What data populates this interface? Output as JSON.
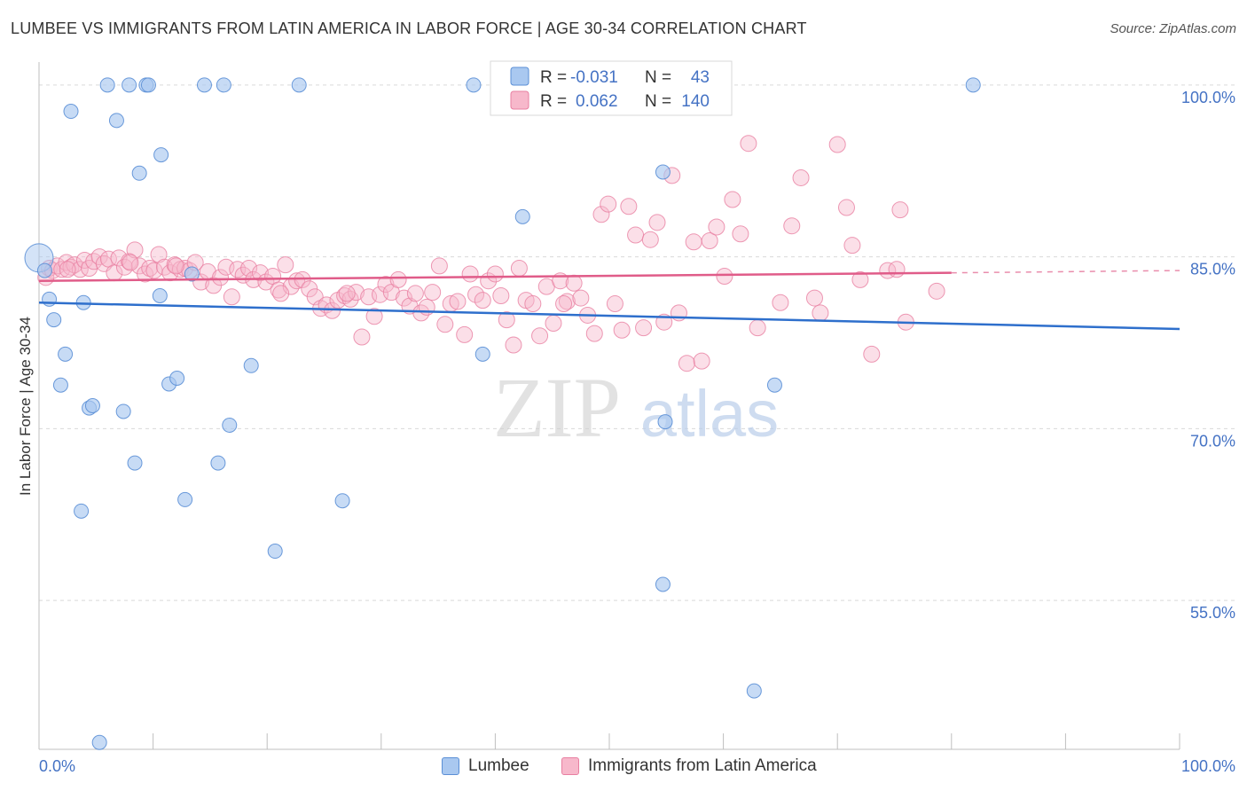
{
  "title": "LUMBEE VS IMMIGRANTS FROM LATIN AMERICA IN LABOR FORCE | AGE 30-34 CORRELATION CHART",
  "source": "Source: ZipAtlas.com",
  "watermark": {
    "zip": "ZIP",
    "atlas": "atlas"
  },
  "colors": {
    "blue_fill": "#a9c8f0",
    "blue_stroke": "#5b8fd6",
    "blue_line": "#2e6fcc",
    "pink_fill": "#f7b8cb",
    "pink_stroke": "#e87fa1",
    "pink_line": "#e05c89",
    "axis_text": "#4472c4",
    "grid": "#d9d9d9"
  },
  "legend_box": {
    "rows": [
      {
        "r_label": "R =",
        "r_value": "-0.031",
        "n_label": "N =",
        "n_value": "43"
      },
      {
        "r_label": "R =",
        "r_value": "0.062",
        "n_label": "N =",
        "n_value": "140"
      }
    ]
  },
  "bottom_legend": [
    "Lumbee",
    "Immigrants from Latin America"
  ],
  "chart_data": {
    "type": "scatter",
    "title": "LUMBEE VS IMMIGRANTS FROM LATIN AMERICA IN LABOR FORCE | AGE 30-34 CORRELATION CHART",
    "xlabel": "",
    "ylabel": "In Labor Force | Age 30-34",
    "xlim": [
      0,
      100
    ],
    "ylim": [
      42,
      102
    ],
    "x_tick_labels": [
      {
        "value": 0,
        "label": "0.0%"
      },
      {
        "value": 100,
        "label": "100.0%"
      }
    ],
    "y_tick_labels": [
      {
        "value": 100,
        "label": "100.0%"
      },
      {
        "value": 85,
        "label": "85.0%"
      },
      {
        "value": 70,
        "label": "70.0%"
      },
      {
        "value": 55,
        "label": "55.0%"
      }
    ],
    "series": [
      {
        "name": "Lumbee",
        "R": -0.031,
        "N": 43,
        "trend": {
          "x0": 0,
          "y0": 81.0,
          "x1": 100,
          "y1": 78.7
        },
        "points": [
          [
            0,
            84.9
          ],
          [
            0.9,
            81.3
          ],
          [
            1.3,
            79.5
          ],
          [
            1.9,
            73.8
          ],
          [
            2.3,
            76.5
          ],
          [
            2.8,
            97.7
          ],
          [
            3.7,
            62.8
          ],
          [
            3.9,
            81.0
          ],
          [
            4.4,
            71.8
          ],
          [
            4.7,
            72.0
          ],
          [
            5.3,
            42.6
          ],
          [
            6.0,
            100.0
          ],
          [
            6.8,
            96.9
          ],
          [
            7.4,
            71.5
          ],
          [
            7.9,
            100.0
          ],
          [
            8.4,
            67.0
          ],
          [
            8.8,
            92.3
          ],
          [
            9.4,
            100.0
          ],
          [
            9.6,
            100.0
          ],
          [
            10.6,
            81.6
          ],
          [
            10.7,
            93.9
          ],
          [
            11.4,
            73.9
          ],
          [
            12.1,
            74.4
          ],
          [
            12.8,
            63.8
          ],
          [
            13.4,
            83.5
          ],
          [
            14.5,
            100.0
          ],
          [
            15.7,
            67.0
          ],
          [
            16.2,
            100.0
          ],
          [
            16.7,
            70.3
          ],
          [
            18.6,
            75.5
          ],
          [
            20.7,
            59.3
          ],
          [
            22.8,
            100.0
          ],
          [
            26.6,
            63.7
          ],
          [
            38.1,
            100.0
          ],
          [
            38.9,
            76.5
          ],
          [
            42.4,
            88.5
          ],
          [
            54.7,
            92.4
          ],
          [
            54.9,
            70.6
          ],
          [
            54.7,
            56.4
          ],
          [
            62.7,
            47.1
          ],
          [
            64.5,
            73.8
          ],
          [
            81.9,
            100.0
          ],
          [
            0.5,
            83.8
          ]
        ]
      },
      {
        "name": "Immigrants from Latin America",
        "R": 0.062,
        "N": 140,
        "trend": {
          "x0": 0,
          "y0": 82.9,
          "x1": 80,
          "y1": 83.6,
          "dash_x1": 100,
          "dash_y1": 83.8
        },
        "points": [
          [
            0.6,
            83.2
          ],
          [
            0.9,
            84.0
          ],
          [
            1.2,
            83.8
          ],
          [
            1.6,
            84.2
          ],
          [
            2.0,
            83.9
          ],
          [
            2.4,
            84.5
          ],
          [
            2.8,
            84.1
          ],
          [
            3.1,
            84.3
          ],
          [
            3.6,
            83.9
          ],
          [
            4.0,
            84.7
          ],
          [
            4.4,
            84.0
          ],
          [
            4.8,
            84.6
          ],
          [
            5.3,
            85.0
          ],
          [
            5.7,
            84.4
          ],
          [
            6.1,
            84.8
          ],
          [
            6.6,
            83.6
          ],
          [
            7.0,
            84.9
          ],
          [
            7.5,
            84.1
          ],
          [
            7.9,
            84.6
          ],
          [
            8.4,
            85.6
          ],
          [
            8.8,
            84.2
          ],
          [
            9.3,
            83.5
          ],
          [
            9.7,
            84.0
          ],
          [
            10.1,
            83.8
          ],
          [
            10.5,
            85.2
          ],
          [
            11.0,
            84.1
          ],
          [
            11.5,
            83.6
          ],
          [
            11.9,
            84.3
          ],
          [
            12.4,
            83.9
          ],
          [
            12.8,
            84.0
          ],
          [
            13.2,
            83.8
          ],
          [
            13.7,
            84.5
          ],
          [
            14.2,
            82.8
          ],
          [
            14.8,
            83.7
          ],
          [
            15.3,
            82.5
          ],
          [
            15.9,
            83.2
          ],
          [
            16.4,
            84.1
          ],
          [
            16.9,
            81.5
          ],
          [
            17.4,
            83.9
          ],
          [
            17.9,
            83.4
          ],
          [
            18.4,
            84.0
          ],
          [
            18.8,
            83.0
          ],
          [
            19.4,
            83.6
          ],
          [
            19.9,
            82.8
          ],
          [
            20.5,
            83.3
          ],
          [
            21.0,
            82.1
          ],
          [
            21.6,
            84.3
          ],
          [
            22.1,
            82.4
          ],
          [
            22.6,
            82.9
          ],
          [
            23.1,
            83.0
          ],
          [
            23.7,
            82.2
          ],
          [
            24.2,
            81.5
          ],
          [
            24.7,
            80.5
          ],
          [
            25.2,
            80.8
          ],
          [
            25.7,
            80.3
          ],
          [
            26.2,
            81.2
          ],
          [
            26.8,
            81.6
          ],
          [
            27.3,
            81.3
          ],
          [
            27.8,
            81.9
          ],
          [
            28.3,
            78.0
          ],
          [
            28.9,
            81.5
          ],
          [
            29.4,
            79.8
          ],
          [
            29.9,
            81.7
          ],
          [
            30.4,
            82.6
          ],
          [
            30.9,
            81.9
          ],
          [
            31.5,
            83.0
          ],
          [
            32.0,
            81.4
          ],
          [
            32.5,
            80.7
          ],
          [
            33.0,
            81.8
          ],
          [
            33.5,
            80.1
          ],
          [
            34.0,
            80.6
          ],
          [
            34.5,
            81.9
          ],
          [
            35.1,
            84.2
          ],
          [
            35.6,
            79.1
          ],
          [
            36.1,
            80.9
          ],
          [
            36.7,
            81.1
          ],
          [
            37.3,
            78.2
          ],
          [
            37.8,
            83.5
          ],
          [
            38.3,
            81.7
          ],
          [
            38.9,
            81.2
          ],
          [
            39.4,
            82.9
          ],
          [
            40.0,
            83.5
          ],
          [
            40.5,
            81.6
          ],
          [
            41.0,
            79.5
          ],
          [
            41.6,
            77.3
          ],
          [
            42.1,
            84.0
          ],
          [
            42.7,
            81.2
          ],
          [
            43.3,
            80.9
          ],
          [
            43.9,
            78.1
          ],
          [
            44.5,
            82.4
          ],
          [
            45.1,
            79.2
          ],
          [
            45.7,
            82.9
          ],
          [
            46.3,
            81.1
          ],
          [
            46.9,
            82.7
          ],
          [
            47.5,
            81.4
          ],
          [
            48.1,
            79.9
          ],
          [
            48.7,
            78.3
          ],
          [
            49.3,
            88.7
          ],
          [
            49.9,
            89.6
          ],
          [
            50.5,
            80.9
          ],
          [
            51.1,
            78.6
          ],
          [
            51.7,
            89.4
          ],
          [
            52.3,
            86.9
          ],
          [
            53.0,
            78.8
          ],
          [
            53.6,
            86.5
          ],
          [
            54.2,
            88.0
          ],
          [
            54.8,
            79.3
          ],
          [
            55.5,
            92.1
          ],
          [
            56.1,
            80.1
          ],
          [
            56.8,
            75.7
          ],
          [
            57.4,
            86.3
          ],
          [
            58.1,
            75.9
          ],
          [
            58.8,
            86.4
          ],
          [
            59.4,
            87.6
          ],
          [
            60.1,
            83.3
          ],
          [
            60.8,
            90.0
          ],
          [
            61.5,
            87.0
          ],
          [
            62.2,
            94.9
          ],
          [
            63.0,
            78.8
          ],
          [
            65.0,
            81.0
          ],
          [
            66.0,
            87.7
          ],
          [
            66.8,
            91.9
          ],
          [
            68.0,
            81.4
          ],
          [
            68.5,
            80.1
          ],
          [
            70.0,
            94.8
          ],
          [
            70.8,
            89.3
          ],
          [
            71.3,
            86.0
          ],
          [
            72.0,
            83.0
          ],
          [
            73.0,
            76.5
          ],
          [
            74.4,
            83.8
          ],
          [
            75.2,
            83.9
          ],
          [
            75.5,
            89.1
          ],
          [
            76.0,
            79.3
          ],
          [
            78.7,
            82.0
          ],
          [
            2.5,
            83.9
          ],
          [
            8.0,
            84.5
          ],
          [
            12.0,
            84.2
          ],
          [
            21.2,
            81.8
          ],
          [
            27.0,
            81.8
          ],
          [
            46.0,
            80.9
          ]
        ]
      }
    ]
  }
}
